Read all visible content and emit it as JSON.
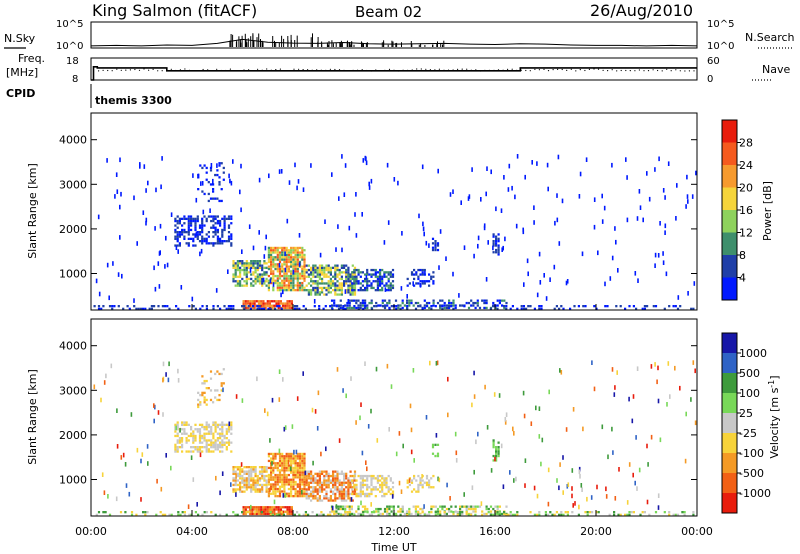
{
  "header": {
    "title": "King Salmon (fitACF)",
    "beam": "Beam 02",
    "date": "26/Aug/2010"
  },
  "left_labels": {
    "nsky": "N.Sky",
    "freq_line1": "Freq.",
    "freq_line2": "[MHz]",
    "cpid": "CPID",
    "cpid_name": "themis 3300"
  },
  "right_labels": {
    "nsearch": "N.Search",
    "nave": "Nave"
  },
  "colors": {
    "power_scale": [
      "#0019ff",
      "#1f3fa8",
      "#3e8f6c",
      "#8ed25c",
      "#f5d43a",
      "#f69a2e",
      "#f55a1e",
      "#e81c0c"
    ],
    "velocity_scale": [
      "#1717a8",
      "#2f63c6",
      "#3e9b3c",
      "#78d858",
      "#c8c8c8",
      "#f7d33a",
      "#f49a25",
      "#f26015",
      "#e81c0c"
    ]
  },
  "chart_data": [
    {
      "id": "noise",
      "type": "line",
      "yticks_left": [
        "10^5",
        "10^0"
      ],
      "yticks_right": [
        "10^5",
        "10^0"
      ],
      "series": [
        {
          "values": [
            1.2,
            1.3,
            1.2,
            1.4,
            1.3,
            1.8,
            3.5,
            2.2,
            1.9,
            1.8,
            2.1,
            1.7,
            1.6,
            1.7,
            1.8,
            1.6,
            1.5,
            1.7,
            1.6,
            1.4,
            1.3,
            1.3,
            1.2,
            1.3,
            1.2
          ]
        }
      ]
    },
    {
      "id": "freq",
      "type": "line",
      "yticks_left": [
        "18",
        "8"
      ],
      "yticks_right": [
        "60",
        "0"
      ],
      "series": [
        {
          "x": [
            0.0,
            0.1,
            0.1,
            0.25,
            0.25,
            3.0,
            3.0,
            17.0,
            17.0,
            24.0
          ],
          "values": [
            8,
            8,
            14,
            14,
            13.5,
            13.5,
            12.2,
            12.2,
            13.5,
            13.5
          ]
        }
      ]
    },
    {
      "id": "power",
      "type": "heatmap",
      "ylabel": "Slant Range [km]",
      "yticks": [
        "1000",
        "2000",
        "3000",
        "4000"
      ],
      "ylim": [
        180,
        4600
      ],
      "colorbar_label": "Power [dB]",
      "colorbar_ticks": [
        "4",
        "8",
        "12",
        "16",
        "20",
        "24",
        "28"
      ]
    },
    {
      "id": "velocity",
      "type": "heatmap",
      "ylabel": "Slant Range [km]",
      "yticks": [
        "1000",
        "2000",
        "3000",
        "4000"
      ],
      "ylim": [
        180,
        4600
      ],
      "xlabel": "Time UT",
      "xticks": [
        "00:00",
        "04:00",
        "08:00",
        "12:00",
        "16:00",
        "20:00",
        "00:00"
      ],
      "colorbar_label": "Velocity [m s",
      "colorbar_label_sup": "-1",
      "colorbar_label_end": "]",
      "colorbar_ticks": [
        "1000",
        "500",
        "100",
        "25",
        "-25",
        "-100",
        "-500",
        "-1000"
      ]
    }
  ]
}
